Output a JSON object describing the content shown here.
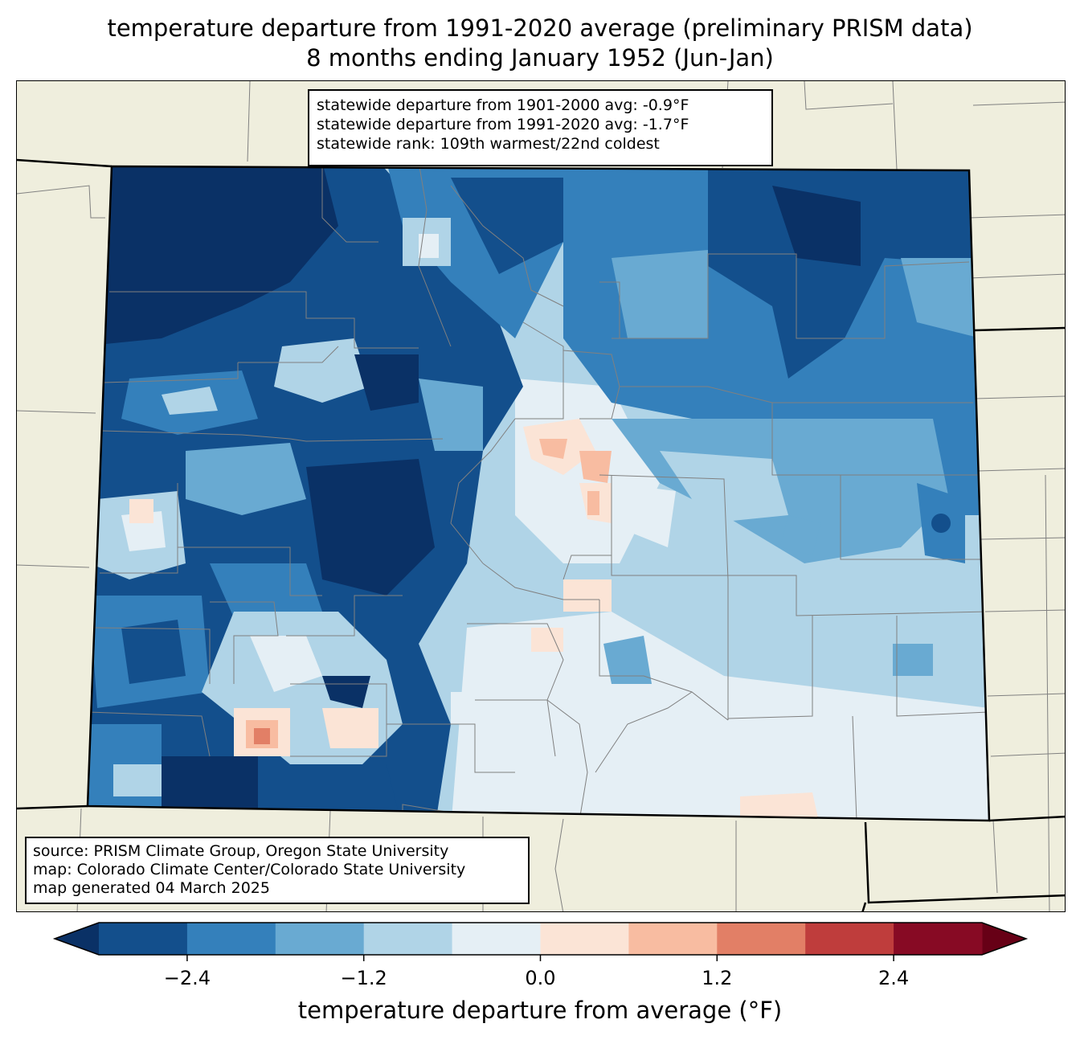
{
  "title_line1": "temperature departure from 1991-2020 average (preliminary PRISM data)",
  "title_line2": "8 months ending January 1952 (Jun-Jan)",
  "stats": {
    "line1": "statewide departure from 1901-2000 avg: -0.9°F",
    "line2": "statewide departure from 1991-2020 avg: -1.7°F",
    "line3": "statewide rank: 109th warmest/22nd coldest"
  },
  "source": {
    "line1": "source: PRISM Climate Group, Oregon State University",
    "line2": "map: Colorado Climate Center/Colorado State University",
    "line3": "map generated 04 March 2025"
  },
  "colorbar": {
    "label": "temperature departure from average (°F)",
    "min": -3.0,
    "max": 3.0,
    "step": 0.6,
    "ticks": [
      -2.4,
      -1.2,
      0.0,
      1.2,
      2.4
    ],
    "tick_labels": [
      "−2.4",
      "−1.2",
      "0.0",
      "1.2",
      "2.4"
    ],
    "colors": [
      "#134f8c",
      "#3480bb",
      "#69aad2",
      "#b0d4e7",
      "#e5eff5",
      "#fbe4d6",
      "#f8bca1",
      "#e27f66",
      "#bf3d3c",
      "#870a24"
    ],
    "under_color": "#0a3166",
    "over_color": "#670016"
  },
  "map": {
    "background_color": "#efeedd",
    "state_border_color": "#000000",
    "county_line_color": "#808080"
  }
}
